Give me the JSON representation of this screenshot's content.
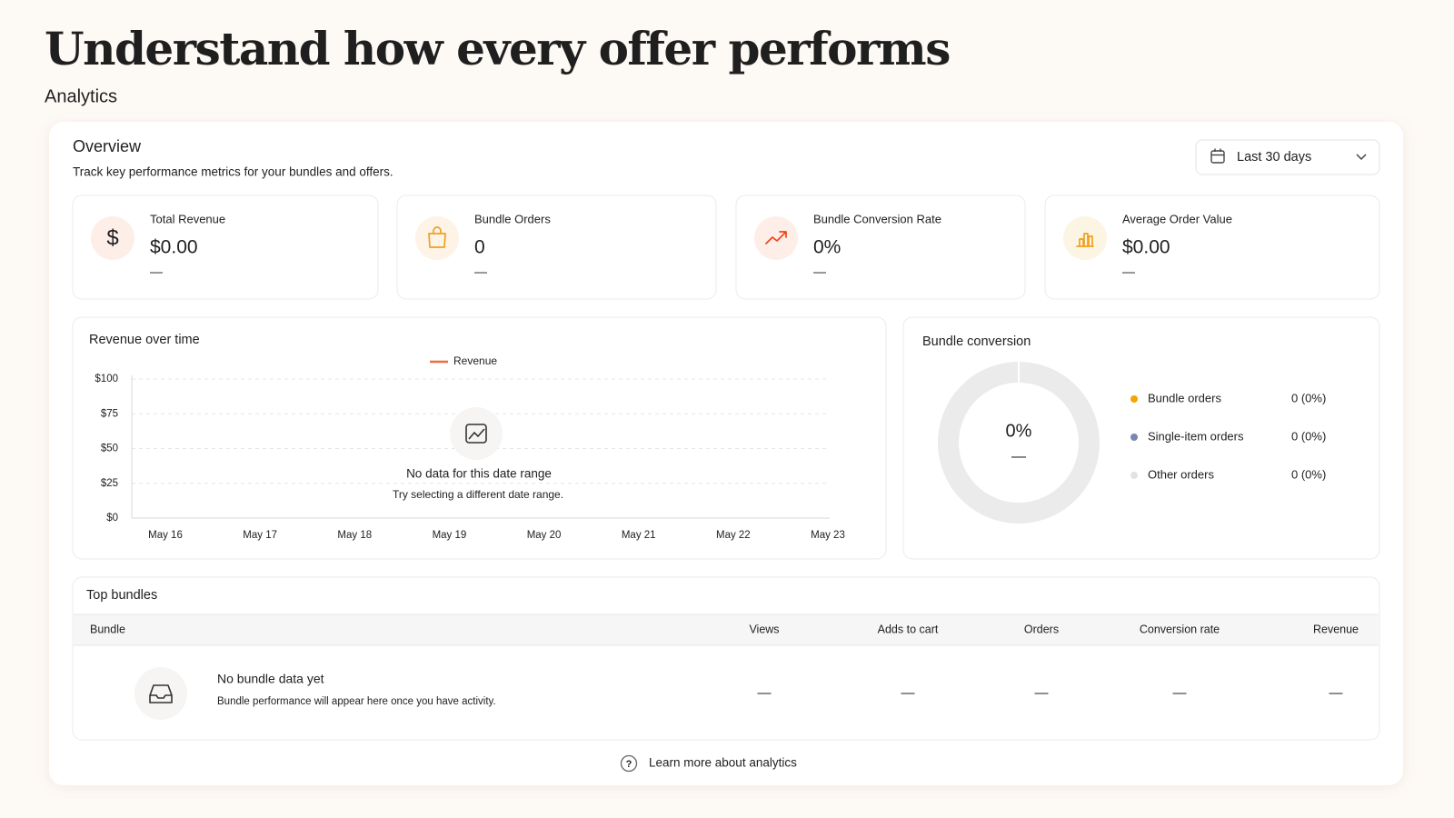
{
  "header": {
    "title": "Understand how every offer performs",
    "subtitle": "Analytics"
  },
  "overview": {
    "title": "Overview",
    "description": "Track key performance metrics for your bundles and offers.",
    "date_range": "Last 30 days"
  },
  "metrics": [
    {
      "label": "Total Revenue",
      "value": "$0.00",
      "change": "—"
    },
    {
      "label": "Bundle Orders",
      "value": "0",
      "change": "—"
    },
    {
      "label": "Bundle Conversion Rate",
      "value": "0%",
      "change": "—"
    },
    {
      "label": "Average Order Value",
      "value": "$0.00",
      "change": "—"
    }
  ],
  "revenue_chart": {
    "type": "line",
    "title": "Revenue over time",
    "categories": [
      "May 16",
      "May 17",
      "May 18",
      "May 19",
      "May 20",
      "May 21",
      "May 22",
      "May 23"
    ],
    "series": [
      {
        "name": "Revenue",
        "color": "#f26b3a",
        "values": [
          null,
          null,
          null,
          null,
          null,
          null,
          null,
          null
        ]
      }
    ],
    "ylim": [
      0,
      100
    ],
    "yticks": [
      {
        "value": 0,
        "label": "$0"
      },
      {
        "value": 25,
        "label": "$25"
      },
      {
        "value": 50,
        "label": "$50"
      },
      {
        "value": 75,
        "label": "$75"
      },
      {
        "value": 100,
        "label": "$100"
      }
    ],
    "grid": true,
    "empty_title": "No data for this date range",
    "empty_hint": "Try selecting a different date range."
  },
  "bundle_conversion": {
    "title": "Bundle conversion",
    "center_value": "0%",
    "center_sub": "—",
    "legend": [
      {
        "name": "Bundle orders",
        "value": "0 (0%)",
        "color": "#f5a400"
      },
      {
        "name": "Single-item orders",
        "value": "0 (0%)",
        "color": "#7b86b0"
      },
      {
        "name": "Other orders",
        "value": "0 (0%)",
        "color": "#e2e2e2"
      }
    ]
  },
  "top_bundles": {
    "title": "Top bundles",
    "columns": [
      "Bundle",
      "Views",
      "Adds to cart",
      "Orders",
      "Conversion rate",
      "Revenue"
    ],
    "empty_title": "No bundle data yet",
    "empty_hint": "Bundle performance will appear here once you have activity.",
    "placeholders": [
      "—",
      "—",
      "—",
      "—",
      "—"
    ]
  },
  "footer": {
    "link": "Learn more about analytics"
  }
}
